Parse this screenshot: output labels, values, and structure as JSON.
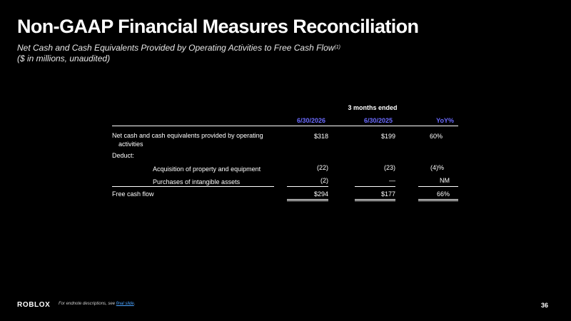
{
  "title": "Non-GAAP Financial Measures Reconciliation",
  "subtitle": {
    "line1": "Net Cash and Cash Equivalents Provided by Operating Activities to Free Cash Flow",
    "footnote_mark": "(1)",
    "line2": "($ in millions, unaudited)"
  },
  "table": {
    "period_header": "3 months ended",
    "columns": [
      "6/30/2026",
      "6/30/2025",
      "YoY%"
    ],
    "rows": {
      "ncfo": {
        "label_line1": "Net cash and cash equivalents provided by operating",
        "label_line2": "activities",
        "values": [
          "$318",
          "$199",
          "60%"
        ]
      },
      "deduct": {
        "label": "Deduct:"
      },
      "ppe": {
        "label": "Acquisition of property and equipment",
        "values": [
          "(22)",
          "(23)",
          "(4)%"
        ]
      },
      "intangibles": {
        "label": "Purchases of intangible assets",
        "values": [
          "(2)",
          "—",
          "NM"
        ]
      },
      "fcf": {
        "label": "Free cash flow",
        "values": [
          "$294",
          "$177",
          "66%"
        ]
      }
    }
  },
  "footer": {
    "logo": "ROBLOX",
    "note_prefix": "For endnote descriptions, see ",
    "note_link": "final slide",
    "note_suffix": ".",
    "page_number": "36"
  }
}
